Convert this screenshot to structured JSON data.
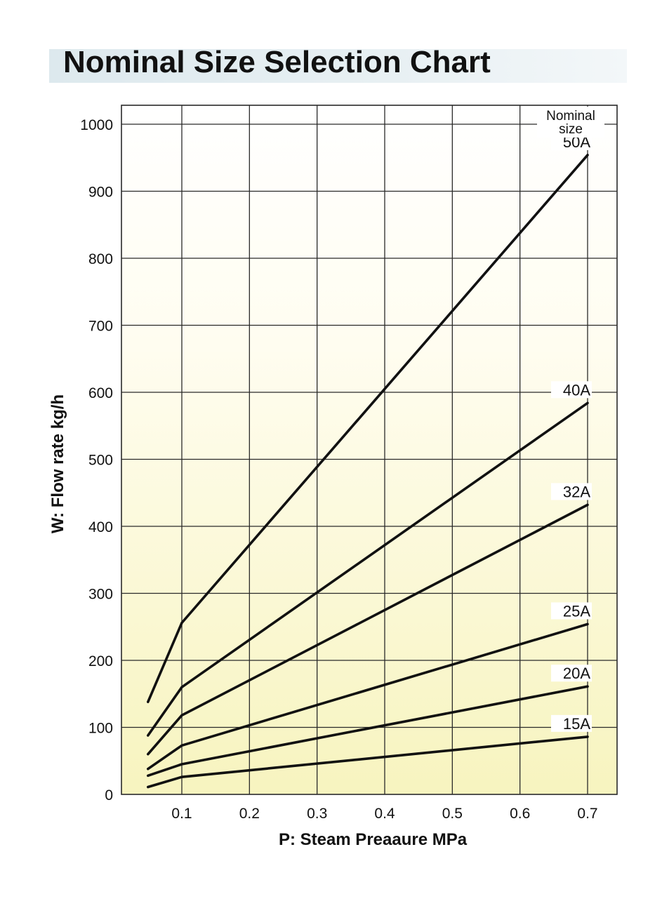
{
  "title": "Nominal Size Selection Chart",
  "chart_data": {
    "type": "line",
    "title": "Nominal Size Selection Chart",
    "xlabel": "P: Steam Preaaure MPa",
    "ylabel": "W: Flow rate kg/h",
    "xlim": [
      0.0,
      0.72
    ],
    "ylim": [
      0,
      1000
    ],
    "xticks": [
      0.1,
      0.2,
      0.3,
      0.4,
      0.5,
      0.6,
      0.7
    ],
    "xtick_labels": [
      "0.1",
      "0.2",
      "0.3",
      "0.4",
      "0.5",
      "0.6",
      "0.7"
    ],
    "yticks": [
      0,
      100,
      200,
      300,
      400,
      500,
      600,
      700,
      800,
      900,
      1000
    ],
    "ytick_labels": [
      "0",
      "100",
      "200",
      "300",
      "400",
      "500",
      "600",
      "700",
      "800",
      "900",
      "1000"
    ],
    "grid": true,
    "legend_heading": [
      "Nominal",
      "size"
    ],
    "series": [
      {
        "name": "50A",
        "x": [
          0.05,
          0.1,
          0.7
        ],
        "y": [
          138,
          256,
          954
        ]
      },
      {
        "name": "40A",
        "x": [
          0.05,
          0.1,
          0.7
        ],
        "y": [
          88,
          160,
          584
        ]
      },
      {
        "name": "32A",
        "x": [
          0.05,
          0.1,
          0.7
        ],
        "y": [
          60,
          118,
          432
        ]
      },
      {
        "name": "25A",
        "x": [
          0.05,
          0.1,
          0.7
        ],
        "y": [
          38,
          73,
          254
        ]
      },
      {
        "name": "20A",
        "x": [
          0.05,
          0.1,
          0.7
        ],
        "y": [
          28,
          45,
          161
        ]
      },
      {
        "name": "15A",
        "x": [
          0.05,
          0.1,
          0.7
        ],
        "y": [
          11,
          26,
          86
        ]
      }
    ],
    "colors": {
      "line": "#111111",
      "grid": "#2a2a2a",
      "plot_bg_top": "#ffffff",
      "plot_bg_bottom": "#f7f4bf"
    }
  }
}
